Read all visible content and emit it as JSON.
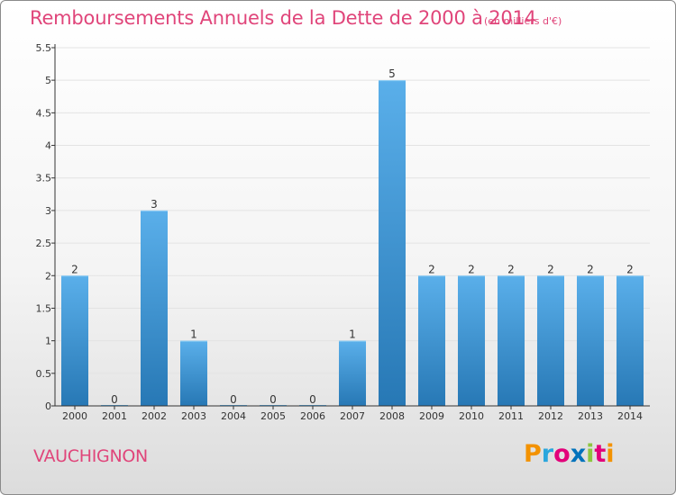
{
  "title": "Remboursements Annuels de la Dette de 2000 à 2014",
  "unit_note": "(en milliers d'€)",
  "commune": "VAUCHIGNON",
  "logo": {
    "letters": [
      "P",
      "r",
      "o",
      "x",
      "i",
      "t",
      "i"
    ],
    "colors": [
      "#f39200",
      "#2aa6dd",
      "#e2007a",
      "#0072bb",
      "#8cc63f",
      "#e2007a",
      "#f39200"
    ]
  },
  "colors": {
    "bar_top": "#5aafea",
    "bar_bottom": "#2778b5",
    "accent": "#e0457a",
    "grid": "#e3e3e3",
    "axis": "#333333"
  },
  "chart_data": {
    "type": "bar",
    "title": "Remboursements Annuels de la Dette de 2000 à 2014",
    "subtitle": "(en milliers d'€)",
    "categories": [
      "2000",
      "2001",
      "2002",
      "2003",
      "2004",
      "2005",
      "2006",
      "2007",
      "2008",
      "2009",
      "2010",
      "2011",
      "2012",
      "2013",
      "2014"
    ],
    "values": [
      2,
      0,
      3,
      1,
      0,
      0,
      0,
      1,
      5,
      2,
      2,
      2,
      2,
      2,
      2
    ],
    "value_labels": [
      "2",
      "0",
      "3",
      "1",
      "0",
      "0",
      "0",
      "1",
      "5",
      "2",
      "2",
      "2",
      "2",
      "2",
      "2"
    ],
    "y_ticks": [
      0,
      0.5,
      1,
      1.5,
      2,
      2.5,
      3,
      3.5,
      4,
      4.5,
      5,
      5.5
    ],
    "y_tick_labels": [
      "0",
      "0.5",
      "1",
      "1.5",
      "2",
      "2.5",
      "3",
      "3.5",
      "4",
      "4.5",
      "5",
      "5.5"
    ],
    "ylim": [
      0,
      5.5
    ],
    "xlabel": "",
    "ylabel": "",
    "grid": "horizontal",
    "legend": "none"
  }
}
